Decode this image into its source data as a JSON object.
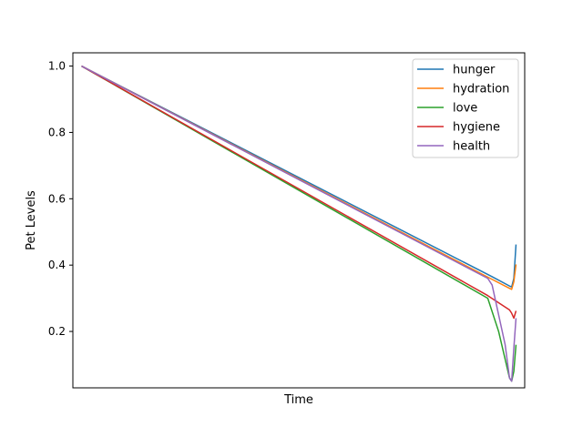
{
  "chart_data": {
    "type": "line",
    "xlabel": "Time",
    "ylabel": "Pet Levels",
    "xlim": [
      -0.02,
      1.02
    ],
    "ylim": [
      0.03,
      1.04
    ],
    "yticks": [
      0.2,
      0.4,
      0.6,
      0.8,
      1.0
    ],
    "ytick_labels": [
      "0.2",
      "0.4",
      "0.6",
      "0.8",
      "1.0"
    ],
    "xticks_shown": false,
    "grid": false,
    "legend_position": "top-right",
    "series": [
      {
        "name": "hunger",
        "color": "#1f77b4",
        "x": [
          0.0,
          0.945,
          0.985,
          0.99,
          0.995,
          1.0
        ],
        "y": [
          1.0,
          0.365,
          0.337,
          0.334,
          0.36,
          0.462
        ]
      },
      {
        "name": "hydration",
        "color": "#ff7f0e",
        "x": [
          0.0,
          0.945,
          0.985,
          0.99,
          0.995,
          1.0
        ],
        "y": [
          1.0,
          0.357,
          0.33,
          0.327,
          0.35,
          0.402
        ]
      },
      {
        "name": "love",
        "color": "#2ca02c",
        "x": [
          0.0,
          0.935,
          0.96,
          0.985,
          0.99,
          0.995,
          1.0
        ],
        "y": [
          1.0,
          0.3,
          0.2,
          0.06,
          0.05,
          0.08,
          0.16
        ]
      },
      {
        "name": "hygiene",
        "color": "#d62728",
        "x": [
          0.0,
          0.935,
          0.985,
          0.99,
          0.995,
          1.0
        ],
        "y": [
          1.0,
          0.308,
          0.265,
          0.255,
          0.24,
          0.262
        ]
      },
      {
        "name": "health",
        "color": "#9467bd",
        "x": [
          0.0,
          0.935,
          0.945,
          0.975,
          0.985,
          0.99,
          0.995,
          1.0
        ],
        "y": [
          1.0,
          0.36,
          0.34,
          0.16,
          0.06,
          0.05,
          0.15,
          0.24
        ]
      }
    ]
  }
}
